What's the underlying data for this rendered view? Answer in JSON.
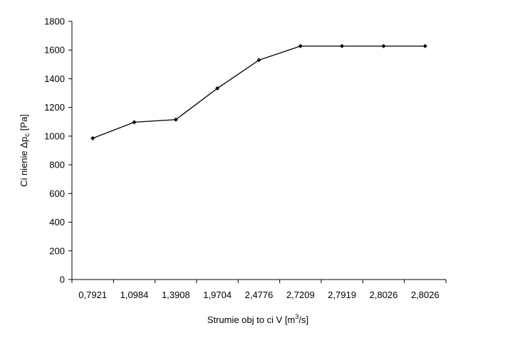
{
  "chart_data": {
    "type": "line",
    "categories": [
      "0,7921",
      "1,0984",
      "1,3908",
      "1,9704",
      "2,4776",
      "2,7209",
      "2,7919",
      "2,8026",
      "2,8026"
    ],
    "series": [
      {
        "values": [
          985,
          1097,
          1115,
          1333,
          1530,
          1628,
          1628,
          1628,
          1628
        ],
        "color": "#000000"
      }
    ],
    "ylim": [
      0,
      1800
    ],
    "yticks": [
      0,
      200,
      400,
      600,
      800,
      1000,
      1200,
      1400,
      1600,
      1800
    ],
    "xlabel_parts": [
      "Strumie   obj  to  ci V [m",
      "3",
      "/s]"
    ],
    "ylabel_parts": [
      "Ci nienie  ",
      "Δp",
      "c",
      " [Pa]"
    ],
    "grid": false,
    "legend": "none",
    "marker": "diamond"
  }
}
